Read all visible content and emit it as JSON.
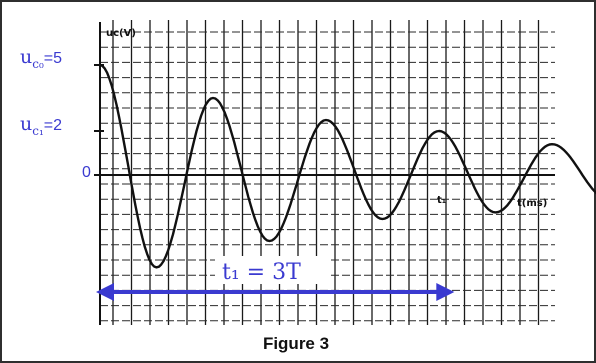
{
  "caption": "Figure 3",
  "labels": {
    "uc0_symbol": "u",
    "uc0_sub": "c₀",
    "uc0_value": "=5",
    "uc1_symbol": "u",
    "uc1_sub": "c₁",
    "uc1_value": "=2",
    "zero": "0",
    "t1_tick": "t₁",
    "t1_relation": "t₁ = 3T"
  },
  "chart_data": {
    "type": "line",
    "title": "",
    "ylabel": "uᴄ(V)",
    "xlabel": "t(ms)",
    "ylim": [
      -5,
      7
    ],
    "yticks": [
      5,
      2,
      0
    ],
    "ytick_labels": [
      "5",
      "2",
      "0"
    ],
    "grid": true,
    "series": [
      {
        "x": [
          0,
          0.5,
          1,
          1.5,
          2,
          2.5,
          3,
          3.5,
          4,
          4.5,
          5
        ],
        "y": [
          5,
          -4.2,
          3.5,
          -3.0,
          2.5,
          -2.0,
          2.0,
          -1.7,
          1.4,
          -1.1,
          0.9
        ]
      }
    ],
    "annotations": [
      {
        "text": "t₁ = 3T",
        "from_x": 0,
        "to_x": 3.1,
        "arrow": "double"
      },
      {
        "text": "t₁",
        "x": 3.1
      }
    ],
    "line_color": "#111111",
    "arrow_color": "#3a3ad0"
  }
}
